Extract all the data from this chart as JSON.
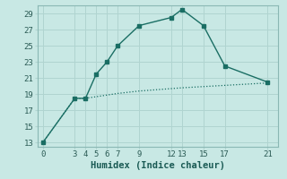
{
  "xlabel": "Humidex (Indice chaleur)",
  "background_color": "#c8e8e4",
  "grid_color": "#b0d4d0",
  "line_color": "#1a6e64",
  "series1_x": [
    0,
    3,
    4,
    5,
    6,
    7,
    9,
    12,
    13,
    15,
    17,
    21
  ],
  "series1_y": [
    13,
    18.5,
    18.5,
    21.5,
    23,
    25,
    27.5,
    28.5,
    29.5,
    27.5,
    22.5,
    20.5
  ],
  "series2_x": [
    0,
    3,
    4,
    5,
    6,
    7,
    9,
    12,
    13,
    15,
    17,
    21
  ],
  "series2_y": [
    13,
    18.5,
    18.5,
    18.7,
    18.9,
    19.1,
    19.4,
    19.7,
    19.8,
    19.95,
    20.1,
    20.4
  ],
  "yticks": [
    13,
    15,
    17,
    19,
    21,
    23,
    25,
    27,
    29
  ],
  "xticks": [
    0,
    3,
    4,
    5,
    6,
    7,
    9,
    12,
    13,
    15,
    17,
    21
  ],
  "ylim": [
    12.5,
    30.0
  ],
  "xlim": [
    -0.5,
    22
  ]
}
